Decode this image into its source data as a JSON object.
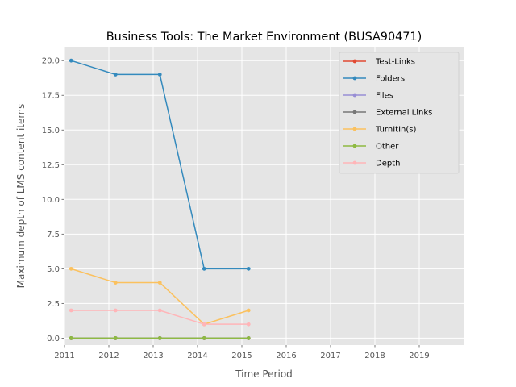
{
  "chart_data": {
    "type": "line",
    "title": "Business Tools: The Market Environment (BUSA90471)",
    "xlabel": "Time Period",
    "ylabel": "Maximum depth of LMS content items",
    "xlim": [
      2011,
      2020
    ],
    "ylim": [
      -0.5,
      21.0
    ],
    "x_ticks": [
      "2011",
      "2012",
      "2013",
      "2014",
      "2015",
      "2016",
      "2017",
      "2018",
      "2019"
    ],
    "y_ticks": [
      "0.0",
      "2.5",
      "5.0",
      "7.5",
      "10.0",
      "12.5",
      "15.0",
      "17.5",
      "20.0"
    ],
    "grid": true,
    "legend_position": "top-right",
    "x": [
      2011.15,
      2012.15,
      2013.15,
      2014.15,
      2015.15
    ],
    "series": [
      {
        "name": "Test-Links",
        "color": "#E24A33",
        "values": [
          0,
          0,
          0,
          0,
          0
        ]
      },
      {
        "name": "Folders",
        "color": "#348ABD",
        "values": [
          20,
          19,
          19,
          5,
          5
        ]
      },
      {
        "name": "Files",
        "color": "#988ED5",
        "values": [
          0,
          0,
          0,
          0,
          0
        ]
      },
      {
        "name": "External Links",
        "color": "#777777",
        "values": [
          0,
          0,
          0,
          0,
          0
        ]
      },
      {
        "name": "TurnItIn(s)",
        "color": "#FBC15E",
        "values": [
          5,
          4,
          4,
          1,
          2
        ]
      },
      {
        "name": "Other",
        "color": "#8EBA42",
        "values": [
          0,
          0,
          0,
          0,
          0
        ]
      },
      {
        "name": "Depth",
        "color": "#FFB5B8",
        "values": [
          2,
          2,
          2,
          1,
          1
        ]
      }
    ]
  }
}
